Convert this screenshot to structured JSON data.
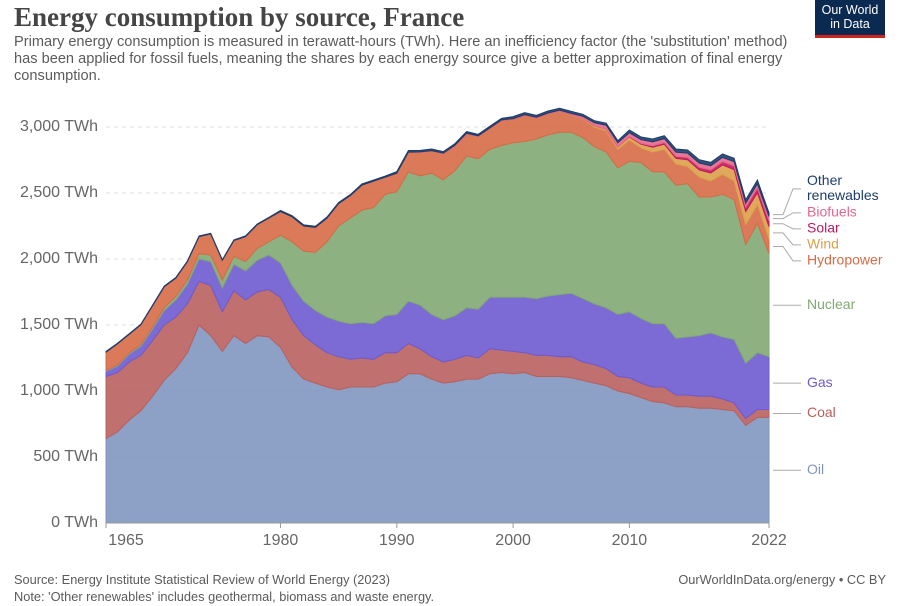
{
  "chart_data": {
    "type": "stacked-area",
    "title": "Energy consumption by source, France",
    "subtitle": "Primary energy consumption is measured in terawatt-hours (TWh). Here an inefficiency factor (the 'substitution' method) has been applied for fossil fuels, meaning the shares by each energy source give a better approximation of final energy consumption.",
    "logo": [
      "Our World",
      "in Data"
    ],
    "source": "Source: Energy Institute Statistical Review of World Energy (2023)",
    "note": "Note: 'Other renewables' includes geothermal, biomass and waste energy.",
    "credit": "OurWorldInData.org/energy • CC BY",
    "x": [
      1965,
      1966,
      1967,
      1968,
      1969,
      1970,
      1971,
      1972,
      1973,
      1974,
      1975,
      1976,
      1977,
      1978,
      1979,
      1980,
      1981,
      1982,
      1983,
      1984,
      1985,
      1986,
      1987,
      1988,
      1989,
      1990,
      1991,
      1992,
      1993,
      1994,
      1995,
      1996,
      1997,
      1998,
      1999,
      2000,
      2001,
      2002,
      2003,
      2004,
      2005,
      2006,
      2007,
      2008,
      2009,
      2010,
      2011,
      2012,
      2013,
      2014,
      2015,
      2016,
      2017,
      2018,
      2019,
      2020,
      2021,
      2022
    ],
    "xlim": [
      1965,
      2022
    ],
    "xticks": [
      1965,
      1980,
      1990,
      2000,
      2010,
      2022
    ],
    "ylim": [
      0,
      3000
    ],
    "yticks": [
      {
        "value": 0,
        "label": "0 TWh"
      },
      {
        "value": 500,
        "label": "500 TWh"
      },
      {
        "value": 1000,
        "label": "1,000 TWh"
      },
      {
        "value": 1500,
        "label": "1,500 TWh"
      },
      {
        "value": 2000,
        "label": "2,000 TWh"
      },
      {
        "value": 2500,
        "label": "2,500 TWh"
      },
      {
        "value": 3000,
        "label": "3,000 TWh"
      }
    ],
    "grid": true,
    "legend": "right",
    "series": [
      {
        "name": "Oil",
        "color": "#8196bf",
        "values": [
          640,
          690,
          780,
          850,
          960,
          1080,
          1170,
          1290,
          1500,
          1420,
          1300,
          1420,
          1360,
          1420,
          1410,
          1330,
          1180,
          1090,
          1060,
          1030,
          1010,
          1030,
          1030,
          1030,
          1060,
          1070,
          1130,
          1130,
          1090,
          1060,
          1070,
          1090,
          1090,
          1130,
          1140,
          1130,
          1140,
          1110,
          1110,
          1110,
          1100,
          1080,
          1060,
          1040,
          1000,
          980,
          950,
          920,
          910,
          880,
          880,
          870,
          870,
          860,
          850,
          740,
          800,
          800
        ]
      },
      {
        "name": "Coal",
        "color": "#b9605e",
        "values": [
          470,
          450,
          440,
          420,
          420,
          420,
          390,
          370,
          330,
          380,
          300,
          340,
          330,
          330,
          360,
          380,
          360,
          330,
          290,
          260,
          250,
          210,
          220,
          210,
          230,
          220,
          230,
          190,
          170,
          160,
          170,
          180,
          160,
          190,
          170,
          170,
          150,
          160,
          160,
          150,
          160,
          140,
          140,
          130,
          110,
          120,
          110,
          110,
          120,
          90,
          90,
          90,
          90,
          80,
          60,
          50,
          60,
          60
        ]
      },
      {
        "name": "Gas",
        "color": "#6e5bcf",
        "values": [
          40,
          50,
          60,
          70,
          90,
          110,
          130,
          150,
          170,
          180,
          180,
          200,
          220,
          240,
          260,
          260,
          260,
          260,
          260,
          270,
          270,
          270,
          270,
          270,
          280,
          290,
          320,
          330,
          320,
          320,
          330,
          360,
          370,
          390,
          400,
          410,
          420,
          430,
          450,
          470,
          480,
          480,
          460,
          460,
          470,
          500,
          490,
          480,
          480,
          430,
          440,
          460,
          480,
          470,
          480,
          420,
          430,
          400
        ]
      },
      {
        "name": "Nuclear",
        "color": "#82a874",
        "values": [
          5,
          8,
          10,
          12,
          15,
          20,
          25,
          30,
          40,
          50,
          60,
          60,
          70,
          90,
          100,
          210,
          330,
          380,
          440,
          570,
          720,
          800,
          850,
          880,
          920,
          930,
          980,
          980,
          1070,
          1060,
          1100,
          1150,
          1140,
          1120,
          1150,
          1170,
          1180,
          1210,
          1220,
          1230,
          1220,
          1220,
          1190,
          1180,
          1110,
          1140,
          1180,
          1150,
          1150,
          1160,
          1160,
          1050,
          1030,
          1080,
          1060,
          900,
          980,
          780
        ]
      },
      {
        "name": "Hydropower",
        "color": "#d66b46",
        "values": [
          140,
          160,
          140,
          150,
          160,
          160,
          140,
          140,
          130,
          160,
          150,
          120,
          190,
          180,
          180,
          180,
          190,
          190,
          190,
          180,
          170,
          170,
          190,
          200,
          130,
          140,
          150,
          180,
          170,
          200,
          190,
          170,
          170,
          160,
          190,
          180,
          200,
          160,
          160,
          160,
          130,
          140,
          150,
          160,
          140,
          160,
          110,
          150,
          170,
          160,
          130,
          150,
          120,
          150,
          140,
          150,
          140,
          110
        ]
      },
      {
        "name": "Wind",
        "color": "#dca04a",
        "values": [
          0,
          0,
          0,
          0,
          0,
          0,
          0,
          0,
          0,
          0,
          0,
          0,
          0,
          0,
          0,
          0,
          0,
          0,
          0,
          0,
          0,
          0,
          0,
          0,
          0,
          0,
          0,
          0,
          0,
          0,
          0,
          0,
          0,
          0,
          0,
          0,
          0,
          0,
          1,
          2,
          3,
          5,
          10,
          14,
          20,
          25,
          30,
          37,
          40,
          42,
          52,
          55,
          62,
          73,
          87,
          100,
          92,
          95
        ]
      },
      {
        "name": "Solar",
        "color": "#c2185b",
        "values": [
          0,
          0,
          0,
          0,
          0,
          0,
          0,
          0,
          0,
          0,
          0,
          0,
          0,
          0,
          0,
          0,
          0,
          0,
          0,
          0,
          0,
          0,
          0,
          0,
          0,
          0,
          0,
          0,
          0,
          0,
          0,
          0,
          0,
          0,
          0,
          0,
          0,
          0,
          0,
          0,
          0,
          0,
          0,
          0,
          1,
          2,
          6,
          10,
          12,
          15,
          18,
          20,
          22,
          25,
          28,
          32,
          36,
          45
        ]
      },
      {
        "name": "Biofuels",
        "color": "#e5688c",
        "values": [
          0,
          0,
          0,
          0,
          0,
          0,
          0,
          0,
          0,
          0,
          0,
          0,
          0,
          0,
          0,
          0,
          0,
          0,
          0,
          0,
          0,
          0,
          0,
          0,
          0,
          0,
          0,
          1,
          1,
          2,
          2,
          3,
          3,
          3,
          4,
          4,
          4,
          4,
          5,
          5,
          10,
          16,
          22,
          30,
          30,
          30,
          28,
          30,
          30,
          32,
          32,
          32,
          33,
          32,
          33,
          30,
          32,
          32
        ]
      },
      {
        "name": "Other renewables",
        "color": "#1d3d6b",
        "values": [
          5,
          5,
          5,
          5,
          5,
          5,
          5,
          5,
          5,
          5,
          5,
          5,
          5,
          5,
          5,
          8,
          8,
          8,
          8,
          8,
          8,
          8,
          8,
          8,
          8,
          12,
          12,
          12,
          12,
          12,
          12,
          12,
          12,
          12,
          12,
          15,
          15,
          15,
          15,
          15,
          15,
          15,
          15,
          15,
          15,
          20,
          20,
          22,
          22,
          24,
          24,
          25,
          25,
          26,
          26,
          27,
          28,
          28
        ]
      }
    ]
  }
}
